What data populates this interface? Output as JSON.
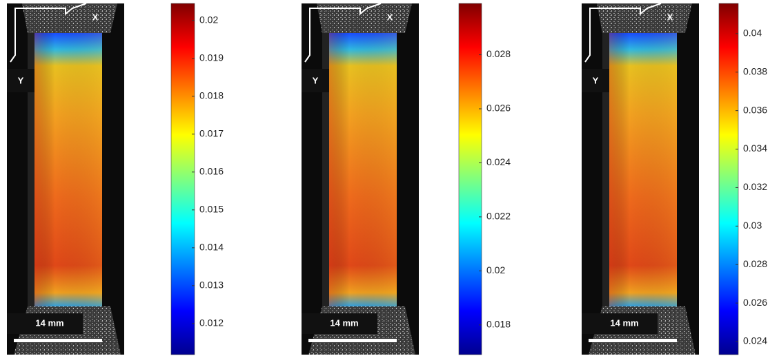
{
  "panels": [
    {
      "axis_x": "X",
      "axis_y": "Y",
      "scale_bar": "14 mm",
      "colorbar": {
        "clim": [
          0.01118,
          0.02045
        ],
        "ticks": [
          0.012,
          0.013,
          0.014,
          0.015,
          0.016,
          0.017,
          0.018,
          0.019,
          0.02
        ]
      }
    },
    {
      "axis_x": "X",
      "axis_y": "Y",
      "scale_bar": "14 mm",
      "colorbar": {
        "clim": [
          0.0169,
          0.0299
        ],
        "ticks": [
          0.018,
          0.02,
          0.022,
          0.024,
          0.026,
          0.028
        ]
      }
    },
    {
      "axis_x": "X",
      "axis_y": "Y",
      "scale_bar": "14 mm",
      "colorbar": {
        "clim": [
          0.02332,
          0.04157
        ],
        "ticks": [
          0.024,
          0.026,
          0.028,
          0.03,
          0.032,
          0.034,
          0.036,
          0.038,
          0.04
        ]
      }
    }
  ]
}
